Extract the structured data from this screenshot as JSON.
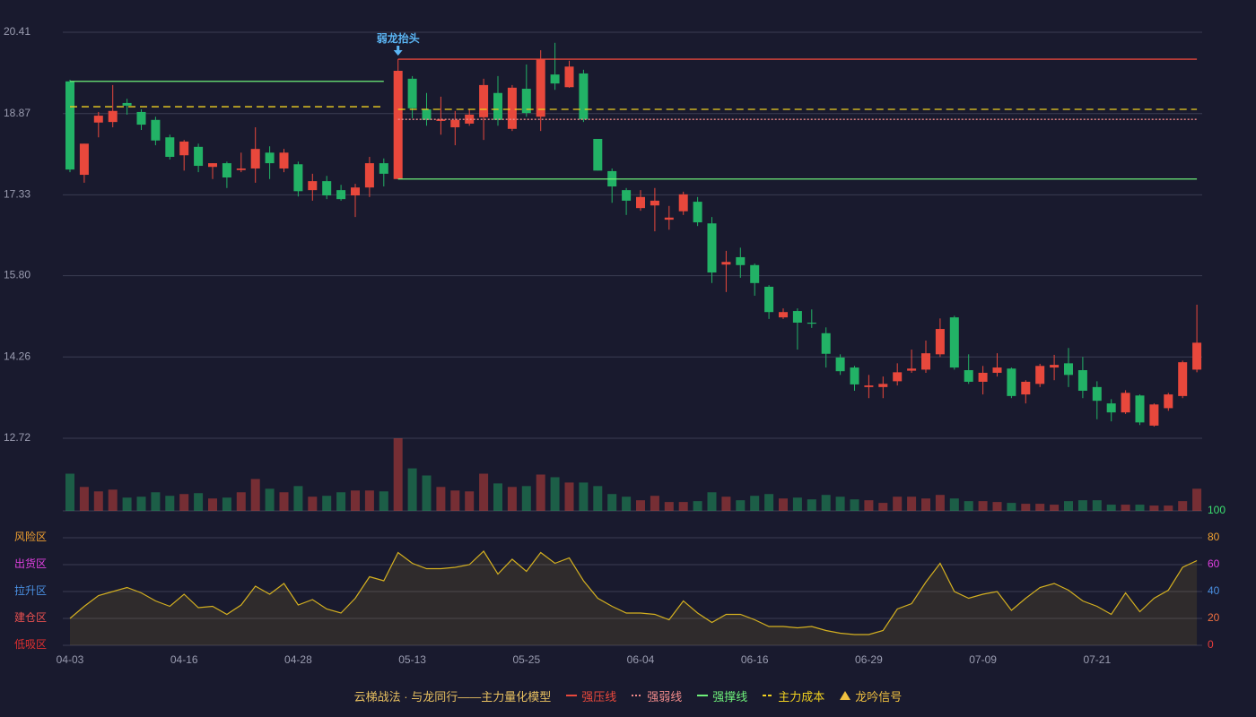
{
  "chart_data": {
    "type": "candlestick",
    "categories": [
      "04-03",
      null,
      null,
      null,
      null,
      null,
      null,
      null,
      "04-16",
      null,
      null,
      null,
      null,
      null,
      null,
      null,
      "04-28",
      null,
      null,
      null,
      null,
      null,
      null,
      null,
      "05-13",
      null,
      null,
      null,
      null,
      null,
      null,
      null,
      "05-25",
      null,
      null,
      null,
      null,
      null,
      null,
      null,
      "06-04",
      null,
      null,
      null,
      null,
      null,
      null,
      null,
      "06-16",
      null,
      null,
      null,
      null,
      null,
      null,
      null,
      "06-29",
      null,
      null,
      null,
      null,
      null,
      null,
      null,
      "07-09",
      null,
      null,
      null,
      null,
      null,
      null,
      null,
      "07-21",
      null,
      null,
      null,
      null,
      null,
      null,
      null
    ],
    "open": [
      19.48,
      17.71,
      18.7,
      18.71,
      19.07,
      18.9,
      18.75,
      18.42,
      18.08,
      18.24,
      17.86,
      17.93,
      17.8,
      17.83,
      18.13,
      17.83,
      17.91,
      17.42,
      17.59,
      17.42,
      17.32,
      17.47,
      17.93,
      17.63,
      19.53,
      18.95,
      18.73,
      18.61,
      18.68,
      18.8,
      19.26,
      18.58,
      19.34,
      18.81,
      19.61,
      19.37,
      19.63,
      18.39,
      17.78,
      17.42,
      17.08,
      17.13,
      16.86,
      17.02,
      17.2,
      16.79,
      16.01,
      16.15,
      16.0,
      15.59,
      15.01,
      15.13,
      14.91,
      14.71,
      14.25,
      14.06,
      13.69,
      13.69,
      13.8,
      14.0,
      14.02,
      14.31,
      15.01,
      14.01,
      13.79,
      13.96,
      14.04,
      13.55,
      13.75,
      14.06,
      14.14,
      14.01,
      13.69,
      13.38,
      13.21,
      13.53,
      12.96,
      13.29,
      13.52,
      14.02
    ],
    "close": [
      17.81,
      18.3,
      18.83,
      18.92,
      19.02,
      18.66,
      18.36,
      18.05,
      18.34,
      17.88,
      17.93,
      17.66,
      17.83,
      18.2,
      17.93,
      18.13,
      17.4,
      17.59,
      17.32,
      17.25,
      17.47,
      17.93,
      17.73,
      19.68,
      18.97,
      18.75,
      18.76,
      18.75,
      18.85,
      19.41,
      18.75,
      19.36,
      18.88,
      19.9,
      19.44,
      19.76,
      18.76,
      17.79,
      17.49,
      17.22,
      17.29,
      17.22,
      16.9,
      17.34,
      16.81,
      15.86,
      16.06,
      16.0,
      15.66,
      15.11,
      15.11,
      14.91,
      14.89,
      14.32,
      13.99,
      13.74,
      13.72,
      13.75,
      13.97,
      14.04,
      14.33,
      14.79,
      14.06,
      13.79,
      13.96,
      14.06,
      13.52,
      13.79,
      14.09,
      14.11,
      13.92,
      13.62,
      13.43,
      13.21,
      13.58,
      13.02,
      13.36,
      13.55,
      14.16,
      14.53
    ],
    "high": [
      19.51,
      18.3,
      18.9,
      19.41,
      19.15,
      18.95,
      18.81,
      18.47,
      18.37,
      18.3,
      17.93,
      17.96,
      18.13,
      18.61,
      18.25,
      18.2,
      17.96,
      17.73,
      17.69,
      17.52,
      17.54,
      18.05,
      18.02,
      19.9,
      19.58,
      19.26,
      19.19,
      18.92,
      18.95,
      19.53,
      19.58,
      19.41,
      19.8,
      20.07,
      20.21,
      19.87,
      19.7,
      18.39,
      17.83,
      17.46,
      17.42,
      17.46,
      17.12,
      17.39,
      17.29,
      16.91,
      16.27,
      16.33,
      16.03,
      15.62,
      15.18,
      15.18,
      15.16,
      14.82,
      14.31,
      14.09,
      13.92,
      13.89,
      14.14,
      14.4,
      14.57,
      14.99,
      15.04,
      14.31,
      14.09,
      14.33,
      14.06,
      13.82,
      14.13,
      14.3,
      14.43,
      14.26,
      13.8,
      13.46,
      13.63,
      13.55,
      13.38,
      13.58,
      14.19,
      15.25
    ],
    "low": [
      17.76,
      17.56,
      18.42,
      18.61,
      18.85,
      18.56,
      18.27,
      18.0,
      17.79,
      17.76,
      17.63,
      17.46,
      17.76,
      17.56,
      17.63,
      17.76,
      17.3,
      17.22,
      17.25,
      17.22,
      16.91,
      17.29,
      17.49,
      17.63,
      18.78,
      18.64,
      18.47,
      18.27,
      18.64,
      18.37,
      18.64,
      18.54,
      18.81,
      18.54,
      19.32,
      19.36,
      18.71,
      17.79,
      17.18,
      16.95,
      17.03,
      16.64,
      16.67,
      16.95,
      16.74,
      15.66,
      15.49,
      15.76,
      15.42,
      14.98,
      14.98,
      14.4,
      14.81,
      14.06,
      13.92,
      13.62,
      13.48,
      13.48,
      13.72,
      13.96,
      13.96,
      14.26,
      14.02,
      13.75,
      13.55,
      13.89,
      13.48,
      13.38,
      13.69,
      13.82,
      13.69,
      13.48,
      13.08,
      13.04,
      13.18,
      12.97,
      12.94,
      13.24,
      13.48,
      13.97
    ],
    "volume": [
      42,
      27,
      22,
      24,
      15,
      16,
      21,
      17,
      19,
      20,
      14,
      15,
      21,
      36,
      25,
      21,
      28,
      16,
      17,
      21,
      23,
      23,
      22,
      82,
      48,
      40,
      27,
      23,
      22,
      42,
      31,
      27,
      28,
      41,
      38,
      32,
      32,
      28,
      19,
      16,
      12,
      17,
      10,
      10,
      11,
      21,
      16,
      12,
      17,
      19,
      14,
      15,
      13,
      18,
      16,
      13,
      12,
      9,
      16,
      16,
      14,
      18,
      14,
      11,
      11,
      10,
      9,
      8,
      8,
      7,
      11,
      12,
      12,
      7,
      7,
      7,
      6,
      6,
      11,
      25
    ],
    "up_color": "#e8483c",
    "down_color": "#22b266",
    "ylim": [
      12.72,
      20.41
    ],
    "yticks": [
      12.72,
      14.26,
      {
        "value": 15.8,
        "label": "15.80"
      },
      17.33,
      18.87,
      20.41
    ],
    "levels": [
      {
        "name": "强压线",
        "color": "#e8483c",
        "style": "solid",
        "segments": [
          {
            "from": 23,
            "to": 79,
            "value": 19.9
          }
        ]
      },
      {
        "name": "强弱线",
        "color": "#f08a8a",
        "style": "dotted",
        "segments": [
          {
            "from": 23,
            "to": 79,
            "value": 18.76
          }
        ]
      },
      {
        "name": "强撑线",
        "color": "#6ef07a",
        "style": "solid",
        "segments": [
          {
            "from": 0,
            "to": 22,
            "value": 19.48
          },
          {
            "from": 23,
            "to": 79,
            "value": 17.63
          }
        ]
      },
      {
        "name": "主力成本",
        "color": "#f0d020",
        "style": "dashed",
        "segments": [
          {
            "from": 0,
            "to": 22,
            "value": 19.0
          },
          {
            "from": 23,
            "to": 79,
            "value": 18.95
          }
        ]
      }
    ],
    "signal": {
      "name": "龙吟信号",
      "color": "#f0c040"
    },
    "annotation": {
      "text": "弱龙抬头",
      "index": 23,
      "value": 19.9,
      "color": "#5bb6f5"
    },
    "legend_title": "云梯战法 · 与龙同行——主力量化模型",
    "indicator": {
      "values": [
        20,
        29,
        37,
        40,
        43,
        39,
        33,
        29,
        38,
        28,
        29,
        23,
        30,
        44,
        38,
        46,
        30,
        34,
        27,
        24,
        35,
        51,
        48,
        69,
        61,
        57,
        57,
        58,
        60,
        70,
        53,
        64,
        55,
        69,
        61,
        65,
        48,
        35,
        29,
        24,
        24,
        23,
        19,
        33,
        24,
        17,
        23,
        23,
        19,
        14,
        14,
        13,
        14,
        11,
        9,
        8,
        8,
        11,
        27,
        31,
        47,
        61,
        40,
        35,
        38,
        40,
        26,
        35,
        43,
        46,
        41,
        33,
        29,
        23,
        39,
        25,
        35,
        41,
        58,
        63
      ],
      "color": "#d4b020",
      "ylim": [
        0,
        100
      ],
      "yticks": [
        0,
        20,
        40,
        60,
        80,
        100
      ],
      "ytick_colors": [
        "#e83c3c",
        "#f07040",
        "#4a90e2",
        "#e040e0",
        "#f0a030",
        "#3ce070"
      ],
      "zones": [
        {
          "label": "风险区",
          "value": 80,
          "color": "#f0a030"
        },
        {
          "label": "出货区",
          "value": 60,
          "color": "#e040e0"
        },
        {
          "label": "拉升区",
          "value": 40,
          "color": "#4a90e2"
        },
        {
          "label": "建仓区",
          "value": 20,
          "color": "#e85050"
        },
        {
          "label": "低吸区",
          "value": 0,
          "color": "#e03030"
        }
      ]
    }
  }
}
